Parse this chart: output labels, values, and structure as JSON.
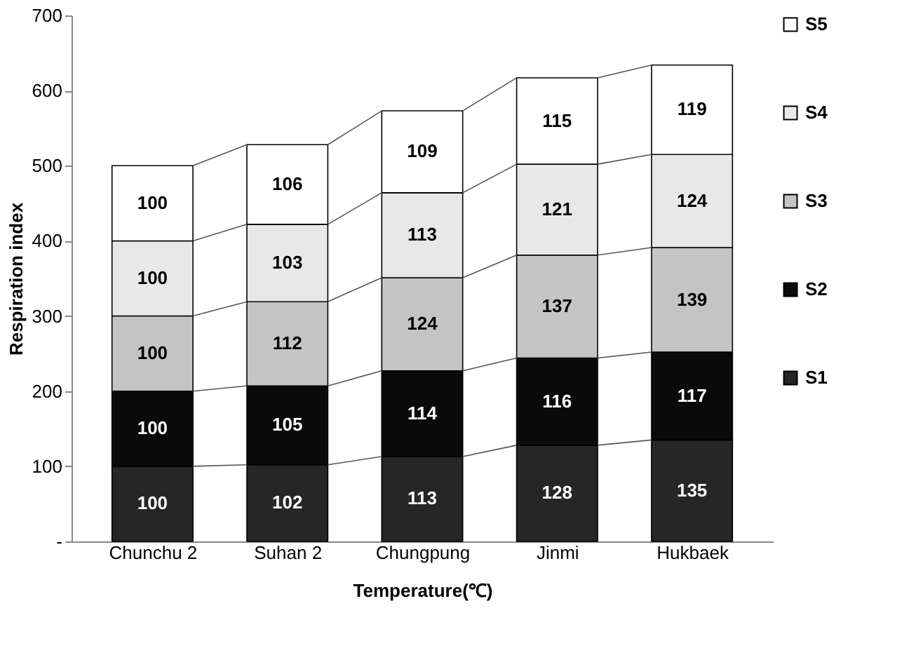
{
  "chart_data": {
    "type": "bar",
    "stacked": true,
    "xlabel": "Temperature(℃)",
    "ylabel": "Respiration index",
    "categories": [
      "Chunchu 2",
      "Suhan 2",
      "Chungpung",
      "Jinmi",
      "Hukbaek"
    ],
    "series": [
      {
        "name": "S1",
        "color": "#262626",
        "values": [
          100,
          102,
          113,
          128,
          135
        ]
      },
      {
        "name": "S2",
        "color": "#0a0a0a",
        "values": [
          100,
          105,
          114,
          116,
          117
        ]
      },
      {
        "name": "S3",
        "color": "#c4c4c4",
        "values": [
          100,
          112,
          124,
          137,
          139
        ]
      },
      {
        "name": "S4",
        "color": "#e8e8e8",
        "values": [
          100,
          103,
          113,
          121,
          124
        ]
      },
      {
        "name": "S5",
        "color": "#ffffff",
        "values": [
          100,
          106,
          109,
          115,
          119
        ]
      }
    ],
    "ylim": [
      0,
      700
    ],
    "yticks": [
      {
        "value": 0,
        "label": "-"
      },
      100,
      200,
      300,
      400,
      500,
      600,
      700
    ],
    "grid": false,
    "legend": "right",
    "data_labels": true
  }
}
